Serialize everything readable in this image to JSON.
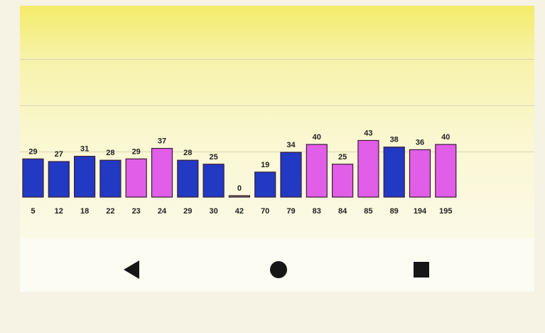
{
  "colors": {
    "blue": "#2239c4",
    "pink": "#e15ee8",
    "neutral": "#7a7a52"
  },
  "chart_data": {
    "type": "bar",
    "categories": [
      "5",
      "12",
      "18",
      "22",
      "23",
      "24",
      "29",
      "30",
      "42",
      "70",
      "79",
      "83",
      "84",
      "85",
      "89",
      "194",
      "195"
    ],
    "values": [
      29,
      27,
      31,
      28,
      29,
      37,
      28,
      25,
      0,
      19,
      34,
      40,
      25,
      43,
      38,
      36,
      40
    ],
    "value_labels": [
      "29",
      "27",
      "31",
      "28",
      "29",
      "37",
      "28",
      "25",
      "0",
      "19",
      "34",
      "40",
      "25",
      "43",
      "38",
      "36",
      "40"
    ],
    "bar_colors": [
      "blue",
      "blue",
      "blue",
      "blue",
      "pink",
      "pink",
      "blue",
      "blue",
      "neutral",
      "blue",
      "blue",
      "pink",
      "pink",
      "pink",
      "blue",
      "pink",
      "pink"
    ],
    "title": "",
    "xlabel": "",
    "ylabel": "",
    "ylim": [
      0,
      70
    ],
    "grid": true,
    "legend": "none"
  },
  "navbar": {
    "back": {
      "icon": "back-triangle-icon"
    },
    "home": {
      "icon": "home-circle-icon"
    },
    "recent": {
      "icon": "recent-apps-square-icon"
    }
  }
}
